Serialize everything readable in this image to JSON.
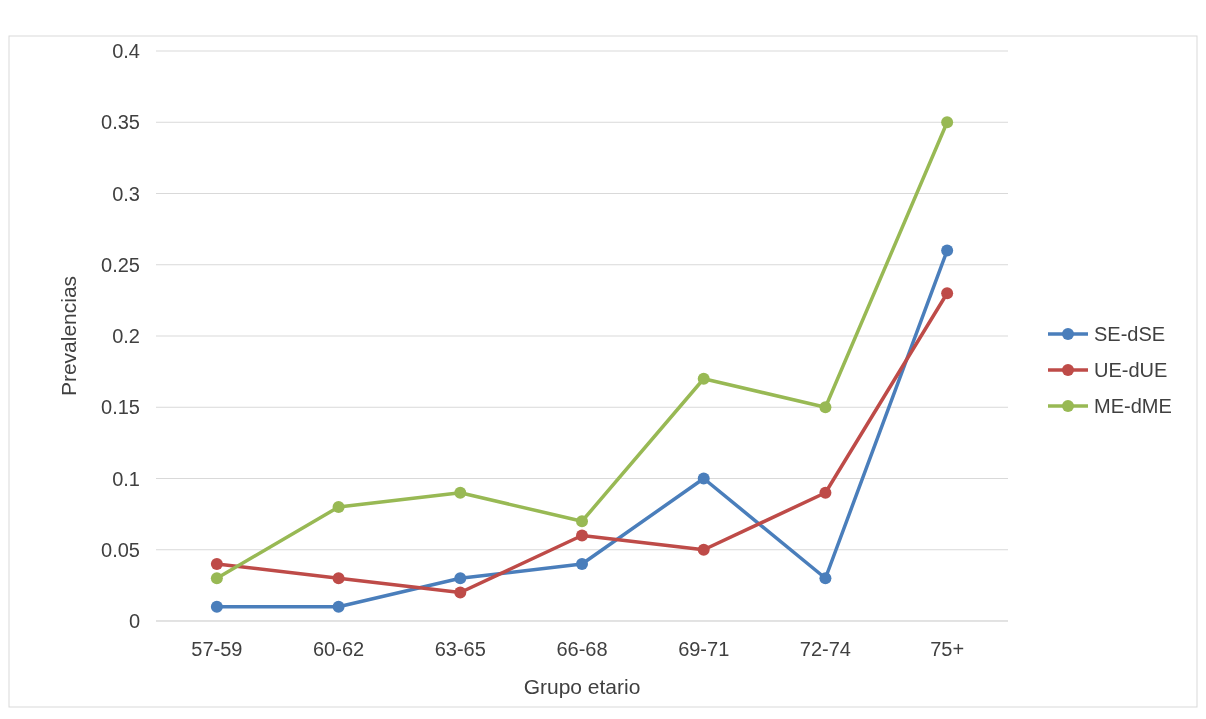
{
  "chart_data": {
    "type": "line",
    "xlabel": "Grupo etario",
    "ylabel": "Prevalencias",
    "categories": [
      "57-59",
      "60-62",
      "63-65",
      "66-68",
      "69-71",
      "72-74",
      "75+"
    ],
    "series": [
      {
        "name": "SE-dSE",
        "color": "#4a7ebb",
        "values": [
          0.01,
          0.01,
          0.03,
          0.04,
          0.1,
          0.03,
          0.26
        ]
      },
      {
        "name": "UE-dUE",
        "color": "#be4b48",
        "values": [
          0.04,
          0.03,
          0.02,
          0.06,
          0.05,
          0.09,
          0.23
        ]
      },
      {
        "name": "ME-dME",
        "color": "#98b954",
        "values": [
          0.03,
          0.08,
          0.09,
          0.07,
          0.17,
          0.15,
          0.35
        ]
      }
    ],
    "ylim": [
      0,
      0.4
    ],
    "yticks": [
      0,
      0.05,
      0.1,
      0.15,
      0.2,
      0.25,
      0.3,
      0.35,
      0.4
    ],
    "grid": "y",
    "legend": "right",
    "marker": "circle"
  }
}
